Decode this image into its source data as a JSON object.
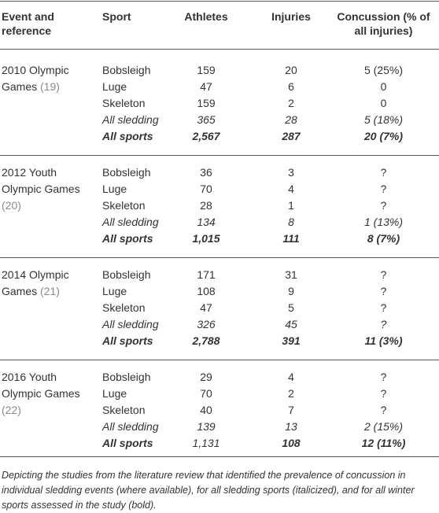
{
  "header": [
    "Event and reference",
    "Sport",
    "Athletes",
    "Injuries",
    "Concussion (% of all injuries)"
  ],
  "groups": [
    {
      "event": "2010 Olympic Games",
      "ref": "(19)",
      "rows": [
        {
          "cells": [
            "Bobsleigh",
            "159",
            "20",
            "5 (25%)"
          ]
        },
        {
          "cells": [
            "Luge",
            "47",
            "6",
            "0"
          ]
        },
        {
          "cells": [
            "Skeleton",
            "159",
            "2",
            "0"
          ]
        },
        {
          "cells": [
            "All sledding",
            "365",
            "28",
            "5 (18%)"
          ],
          "style": "italic"
        },
        {
          "cells": [
            "All sports",
            "2,567",
            "287",
            "20 (7%)"
          ],
          "style": "bold-italic"
        }
      ]
    },
    {
      "event": "2012 Youth Olympic Games",
      "ref": "(20)",
      "rows": [
        {
          "cells": [
            "Bobsleigh",
            "36",
            "3",
            "?"
          ]
        },
        {
          "cells": [
            "Luge",
            "70",
            "4",
            "?"
          ]
        },
        {
          "cells": [
            "Skeleton",
            "28",
            "1",
            "?"
          ]
        },
        {
          "cells": [
            "All sledding",
            "134",
            "8",
            "1 (13%)"
          ],
          "style": "italic"
        },
        {
          "cells": [
            "All sports",
            "1,015",
            "111",
            "8 (7%)"
          ],
          "style": "bold-italic"
        }
      ]
    },
    {
      "event": "2014 Olympic Games",
      "ref": "(21)",
      "rows": [
        {
          "cells": [
            "Bobsleigh",
            "171",
            "31",
            "?"
          ]
        },
        {
          "cells": [
            "Luge",
            "108",
            "9",
            "?"
          ]
        },
        {
          "cells": [
            "Skeleton",
            "47",
            "5",
            "?"
          ]
        },
        {
          "cells": [
            "All sledding",
            "326",
            "45",
            "?"
          ],
          "style": "italic"
        },
        {
          "cells": [
            "All sports",
            "2,788",
            "391",
            "11 (3%)"
          ],
          "style": "bold-italic"
        }
      ]
    },
    {
      "event": "2016 Youth Olympic Games",
      "ref": "(22)",
      "rows": [
        {
          "cells": [
            "Bobsleigh",
            "29",
            "4",
            "?"
          ]
        },
        {
          "cells": [
            "Luge",
            "70",
            "2",
            "?"
          ]
        },
        {
          "cells": [
            "Skeleton",
            "40",
            "7",
            "?"
          ]
        },
        {
          "cells": [
            "All sledding",
            "139",
            "13",
            "2 (15%)"
          ],
          "style": "italic"
        },
        {
          "cells": [
            "All sports",
            "1,131",
            "108",
            "12 (11%)"
          ],
          "style": "bold-italic",
          "cell_styles": [
            "bold-italic",
            "italic",
            "bold-italic",
            "bold-italic"
          ]
        }
      ]
    }
  ],
  "caption": "Depicting the studies from the literature review that identified the prevalence of concussion in individual sledding events (where available), for all sledding sports (italicized), and for all winter sports assessed in the study (bold)."
}
